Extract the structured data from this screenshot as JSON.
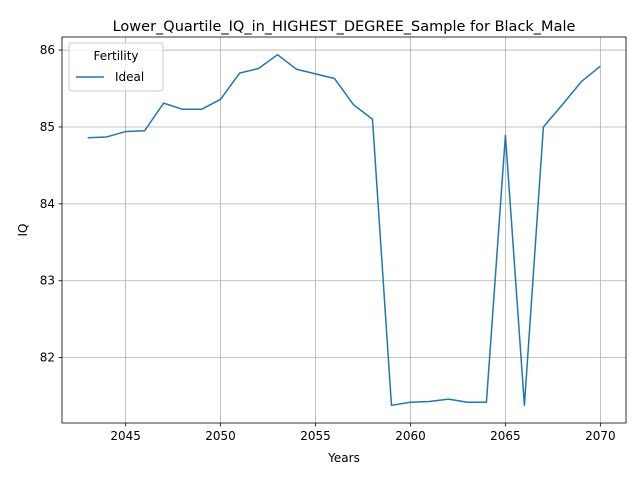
{
  "chart_data": {
    "type": "line",
    "title": "Lower_Quartile_IQ_in_HIGHEST_DEGREE_Sample for Black_Male",
    "xlabel": "Years",
    "ylabel": "IQ",
    "xlim": [
      2041.65,
      2071.35
    ],
    "ylim": [
      81.15,
      86.17
    ],
    "xticks": [
      2045,
      2050,
      2055,
      2060,
      2065,
      2070
    ],
    "yticks": [
      82,
      83,
      84,
      85,
      86
    ],
    "grid": true,
    "legend": {
      "title": "Fertility",
      "placement": "top-left",
      "entries": [
        "Ideal"
      ]
    },
    "colors": {
      "series": "#1f77b4",
      "grid": "#b0b0b0"
    },
    "series": [
      {
        "name": "Ideal",
        "x": [
          2043,
          2044,
          2045,
          2046,
          2047,
          2048,
          2049,
          2050,
          2051,
          2052,
          2053,
          2054,
          2055,
          2056,
          2057,
          2058,
          2059,
          2060,
          2061,
          2062,
          2063,
          2064,
          2065,
          2066,
          2067,
          2068,
          2069,
          2070
        ],
        "values": [
          84.86,
          84.87,
          84.94,
          84.95,
          85.31,
          85.23,
          85.23,
          85.36,
          85.7,
          85.76,
          85.94,
          85.75,
          85.69,
          85.63,
          85.29,
          85.1,
          81.38,
          81.42,
          81.43,
          81.46,
          81.42,
          81.42,
          84.89,
          81.38,
          85.0,
          85.29,
          85.59,
          85.79
        ]
      }
    ]
  }
}
